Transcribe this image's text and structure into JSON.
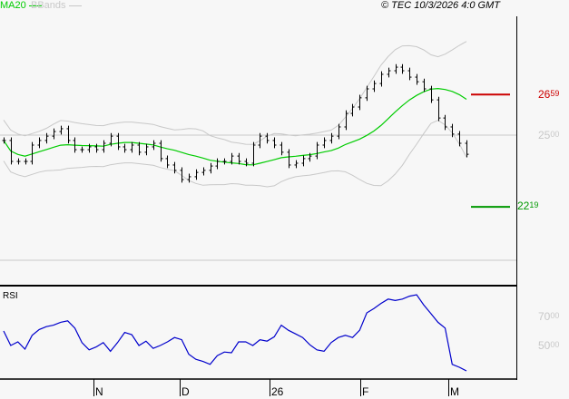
{
  "header": {
    "ma_label": "MA20",
    "bb_label": "BBands",
    "copyright": "© TEC 10/3/2026 4:0 GMT"
  },
  "colors": {
    "ma": "#00cc00",
    "bbands": "#c8c8c8",
    "bars": "#000000",
    "rsi": "#0000cc",
    "resistance": "#cc0000",
    "support": "#009900",
    "grid": "#c8c8c8"
  },
  "chart_data": [
    {
      "type": "ohlc",
      "series": [
        {
          "name": "MA20"
        },
        {
          "name": "BBands"
        }
      ],
      "close": [
        24.79,
        23.97,
        23.97,
        23.97,
        24.61,
        24.79,
        24.96,
        25.14,
        25.25,
        24.79,
        24.43,
        24.43,
        24.54,
        24.43,
        24.68,
        24.96,
        24.54,
        24.43,
        24.61,
        24.33,
        24.54,
        24.68,
        24.08,
        23.83,
        23.62,
        23.26,
        23.37,
        23.54,
        23.62,
        23.79,
        23.97,
        23.97,
        24.18,
        23.97,
        23.9,
        24.61,
        24.96,
        24.79,
        24.61,
        24.33,
        23.83,
        23.9,
        24.08,
        24.18,
        24.61,
        24.79,
        24.96,
        25.32,
        25.85,
        26.1,
        26.46,
        26.81,
        27.02,
        27.38,
        27.52,
        27.66,
        27.52,
        27.27,
        27.09,
        26.81,
        26.38,
        25.67,
        25.32,
        25.04,
        24.68,
        24.25
      ],
      "y_ticks": [
        {
          "value": 25.0,
          "int": "25",
          "dec": "00"
        }
      ],
      "resistance": {
        "value": 26.59,
        "int": "26",
        "dec": "59"
      },
      "support": {
        "value": 22.19,
        "int": "22",
        "dec": "19"
      },
      "x_ticks": [
        "N",
        "D",
        "26",
        "F",
        "M"
      ]
    },
    {
      "type": "line",
      "title": "RSI",
      "values": [
        60,
        50,
        52.5,
        47.5,
        57,
        61,
        63,
        64,
        66,
        67,
        62,
        52,
        47,
        49,
        52,
        46,
        52,
        59,
        57.5,
        50,
        53,
        48,
        50,
        52.5,
        55.5,
        54,
        44,
        40.5,
        39,
        37,
        43,
        45.5,
        45,
        52.5,
        52.5,
        50,
        54,
        53,
        56,
        64,
        60.5,
        58,
        55.5,
        50.5,
        47,
        46,
        52,
        55.5,
        57,
        55.5,
        60.5,
        72.5,
        75.5,
        79,
        82,
        81,
        82,
        84,
        85,
        78,
        72,
        66,
        62,
        37,
        35,
        32.5
      ],
      "y_ticks": [
        {
          "value": 70,
          "int": "70",
          "dec": "00"
        },
        {
          "value": 50,
          "int": "50",
          "dec": "00"
        }
      ]
    }
  ]
}
